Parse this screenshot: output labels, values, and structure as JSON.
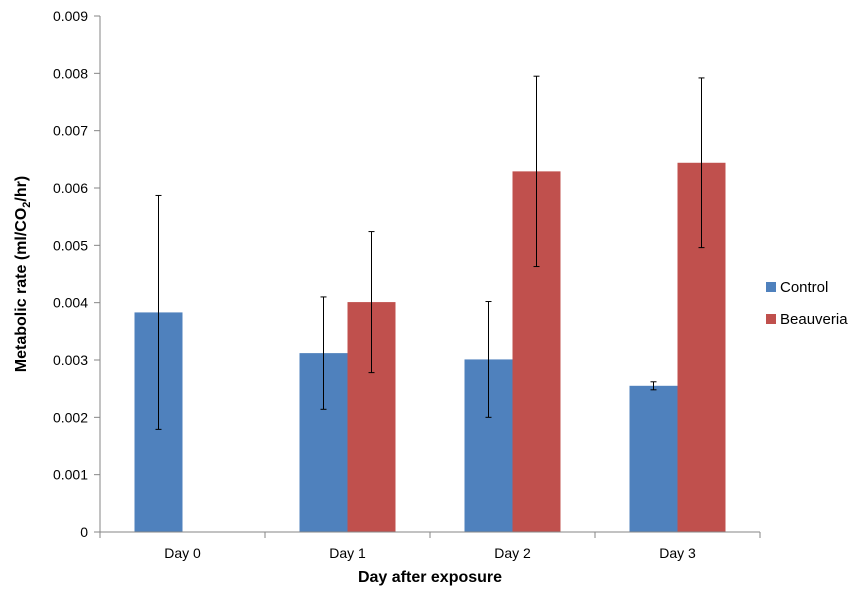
{
  "chart_data": {
    "type": "bar",
    "title": "",
    "xlabel": "Day after exposure",
    "ylabel_prefix": "Metabolic rate (ml/CO",
    "ylabel_sub": "2",
    "ylabel_suffix": "/hr)",
    "categories": [
      "Day 0",
      "Day 1",
      "Day 2",
      "Day 3"
    ],
    "ylim": [
      0,
      0.009
    ],
    "yticks": [
      "0",
      "0.001",
      "0.002",
      "0.003",
      "0.004",
      "0.005",
      "0.006",
      "0.007",
      "0.008",
      "0.009"
    ],
    "grid": false,
    "legend_position": "right",
    "series": [
      {
        "name": "Control",
        "color": "#4F81BD",
        "values": [
          0.00383,
          0.00312,
          0.00301,
          0.00255
        ],
        "error": [
          0.00204,
          0.00098,
          0.00101,
          7e-05
        ]
      },
      {
        "name": "Beauveria",
        "color": "#C0504D",
        "values": [
          null,
          0.00401,
          0.00629,
          0.00644
        ],
        "error": [
          null,
          0.00123,
          0.00166,
          0.00148
        ]
      }
    ]
  }
}
